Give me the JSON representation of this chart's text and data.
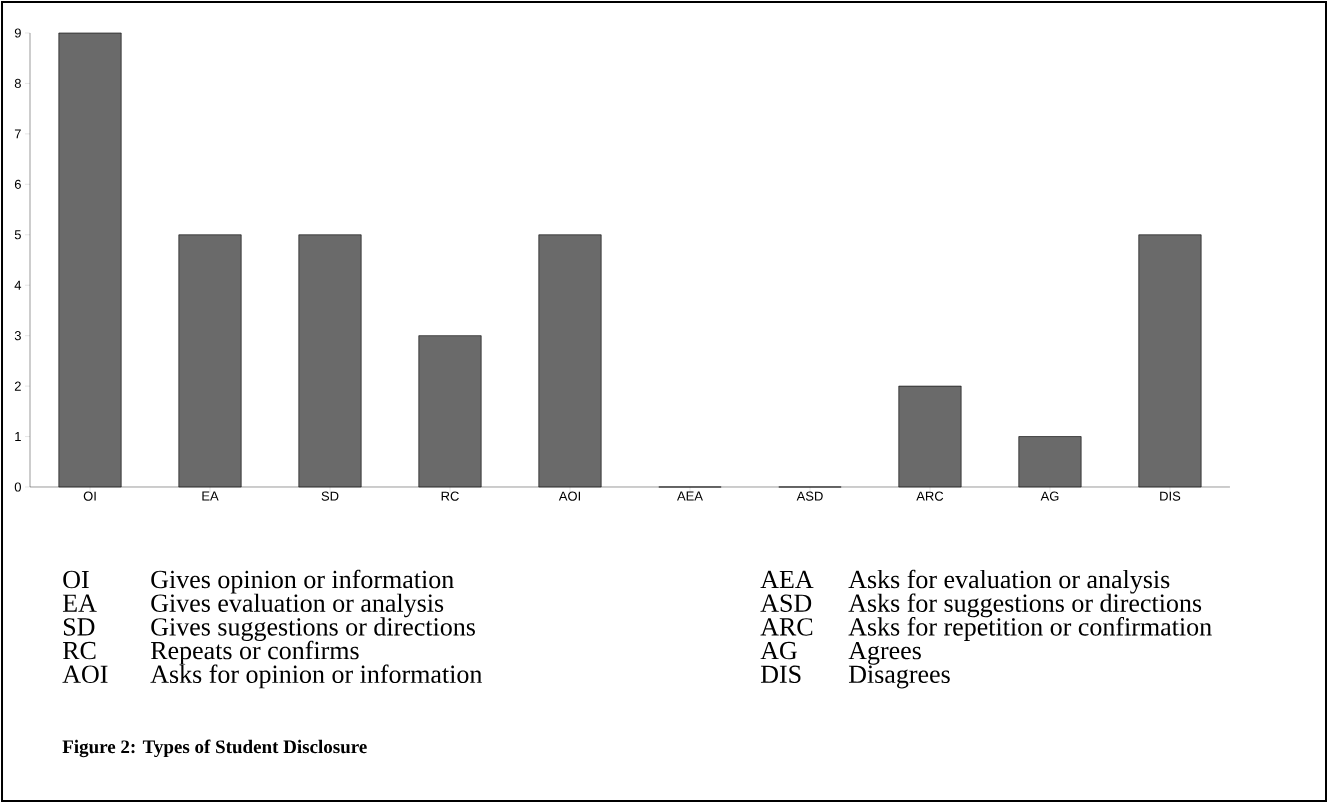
{
  "chart_data": {
    "type": "bar",
    "title": "Figure 2:   Types of Student Disclosure",
    "categories": [
      "OI",
      "EA",
      "SD",
      "RC",
      "AOI",
      "AEA",
      "ASD",
      "ARC",
      "AG",
      "DIS"
    ],
    "values": [
      9,
      5,
      5,
      3,
      5,
      0,
      0,
      2,
      1,
      5
    ],
    "color": "#6a6a6a",
    "ylim": [
      0,
      9
    ],
    "yticks": [
      0,
      1,
      2,
      3,
      4,
      5,
      6,
      7,
      8,
      9
    ],
    "annotations": [
      "OI",
      "Gives opinion or information",
      "EA",
      "Gives evaluation or analysis",
      "SD",
      "Gives suggestions or directions",
      "RC",
      "Repeats or confirms",
      "AOI",
      "Asks for opinion or information",
      "AEA",
      "Asks for evaluation or analysis",
      "ASD",
      "Asks for suggestions or directions",
      "ARC",
      "Asks for repetition or confirmation",
      "AG",
      "Agrees",
      "DIS",
      "Disagrees"
    ]
  }
}
